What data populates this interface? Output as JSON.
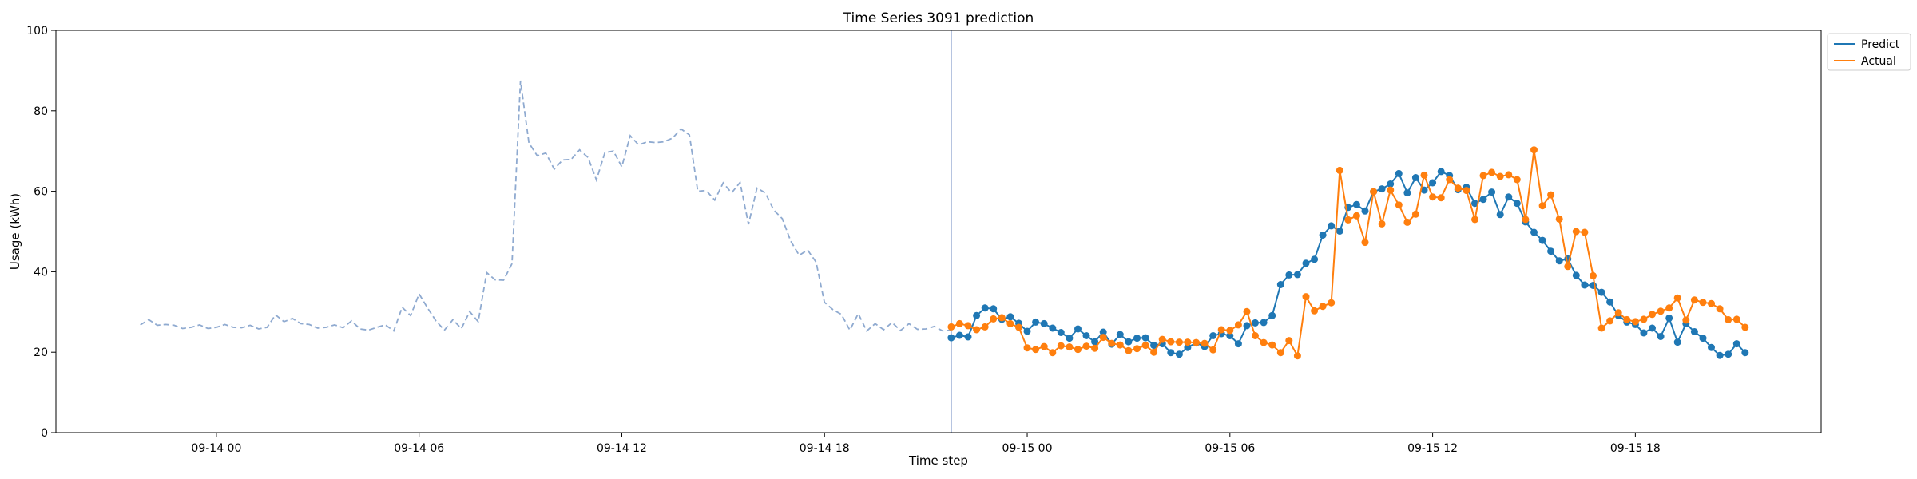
{
  "chart_data": {
    "type": "line",
    "title": "Time Series 3091 prediction",
    "xlabel": "Time step",
    "ylabel": "Usage (kWh)",
    "ylim": [
      0,
      100
    ],
    "yticks": [
      0,
      20,
      40,
      60,
      80,
      100
    ],
    "x_unit": "hours since 09-14 00:00",
    "xlim": [
      -4.75,
      47.5
    ],
    "xticks": [
      {
        "value": 0,
        "label": "09-14 00"
      },
      {
        "value": 6,
        "label": "09-14 06"
      },
      {
        "value": 12,
        "label": "09-14 12"
      },
      {
        "value": 18,
        "label": "09-14 18"
      },
      {
        "value": 24,
        "label": "09-15 00"
      },
      {
        "value": 30,
        "label": "09-15 06"
      },
      {
        "value": 36,
        "label": "09-15 12"
      },
      {
        "value": 42,
        "label": "09-15 18"
      }
    ],
    "forecast_start": 21.75,
    "legend_position": "top-right (outside axes)",
    "history": {
      "name": "",
      "color": "#8faad0",
      "style": "dashed",
      "x_start": -2.25,
      "x_step": 0.25,
      "values": [
        26.8,
        28.1,
        26.7,
        26.9,
        26.7,
        25.9,
        26.2,
        26.8,
        25.9,
        26.2,
        26.9,
        26.2,
        26.1,
        26.7,
        25.8,
        26.2,
        29.3,
        27.6,
        28.4,
        27.1,
        26.9,
        26.0,
        26.2,
        26.8,
        26.1,
        27.8,
        25.8,
        25.5,
        26.2,
        26.8,
        25.3,
        31.2,
        29.1,
        34.5,
        31.0,
        27.8,
        25.5,
        28.1,
        25.9,
        30.1,
        27.6,
        39.8,
        38.0,
        37.9,
        42.0,
        87.5,
        72.0,
        68.8,
        69.5,
        65.5,
        67.8,
        67.9,
        70.3,
        68.4,
        62.8,
        69.6,
        70.0,
        66.1,
        73.8,
        71.5,
        72.3,
        72.1,
        72.3,
        73.2,
        75.5,
        74.0,
        60.0,
        60.2,
        57.8,
        62.1,
        59.6,
        62.2,
        51.8,
        60.8,
        59.6,
        55.3,
        53.2,
        47.6,
        44.1,
        45.4,
        42.4,
        32.4,
        30.6,
        29.4,
        25.5,
        29.6,
        25.3,
        27.1,
        25.6,
        27.4,
        25.4,
        27.1,
        25.7,
        25.8,
        26.4,
        25.3,
        25.5
      ]
    },
    "series": [
      {
        "name": "Predict",
        "color": "#1f77b4",
        "x_start": 21.75,
        "x_step": 0.25,
        "values": [
          23.6,
          24.2,
          23.8,
          29.1,
          31.0,
          30.8,
          28.2,
          28.8,
          27.2,
          25.2,
          27.5,
          27.1,
          26.0,
          24.9,
          23.5,
          25.8,
          24.1,
          22.6,
          25.0,
          22.0,
          24.4,
          22.6,
          23.5,
          23.6,
          21.7,
          22.1,
          19.9,
          19.5,
          21.2,
          22.3,
          21.4,
          24.1,
          24.6,
          24.1,
          22.1,
          26.6,
          27.3,
          27.4,
          29.1,
          36.8,
          39.2,
          39.3,
          42.1,
          43.1,
          49.1,
          51.4,
          50.1,
          56.0,
          56.7,
          55.1,
          59.9,
          60.6,
          61.8,
          64.4,
          59.6,
          63.4,
          60.3,
          62.1,
          64.9,
          63.9,
          60.4,
          61.0,
          57.0,
          58.0,
          59.8,
          54.2,
          58.6,
          57.0,
          52.4,
          49.8,
          47.8,
          45.1,
          42.7,
          43.2,
          39.1,
          36.7,
          36.6,
          34.9,
          32.5,
          29.1,
          27.5,
          26.9,
          24.8,
          26.0,
          23.9,
          28.5,
          22.5,
          27.1,
          25.1,
          23.5,
          21.2,
          19.2,
          19.5,
          22.1,
          19.9
        ]
      },
      {
        "name": "Actual",
        "color": "#ff7f0e",
        "x_start": 21.75,
        "x_step": 0.25,
        "values": [
          26.3,
          27.1,
          26.6,
          25.6,
          26.3,
          28.3,
          28.6,
          27.1,
          26.2,
          21.1,
          20.7,
          21.4,
          19.9,
          21.6,
          21.3,
          20.7,
          21.5,
          21.0,
          23.7,
          22.2,
          21.8,
          20.4,
          20.9,
          21.7,
          20.0,
          23.2,
          22.6,
          22.5,
          22.5,
          22.4,
          22.2,
          20.6,
          25.6,
          25.4,
          26.8,
          30.1,
          24.1,
          22.4,
          21.8,
          19.9,
          22.9,
          19.1,
          33.8,
          30.3,
          31.4,
          32.3,
          65.2,
          52.9,
          53.9,
          47.3,
          59.9,
          51.9,
          60.3,
          56.6,
          52.3,
          54.3,
          64.0,
          58.6,
          58.4,
          62.9,
          60.8,
          60.2,
          53.0,
          63.9,
          64.7,
          63.7,
          64.1,
          62.9,
          53.0,
          70.3,
          56.4,
          59.1,
          53.1,
          41.3,
          50.0,
          49.8,
          39.0,
          26.0,
          27.8,
          29.8,
          28.1,
          27.6,
          28.2,
          29.4,
          30.2,
          31.0,
          33.5,
          28.0,
          33.0,
          32.4,
          32.1,
          30.8,
          28.1,
          28.2,
          26.2
        ]
      }
    ]
  }
}
